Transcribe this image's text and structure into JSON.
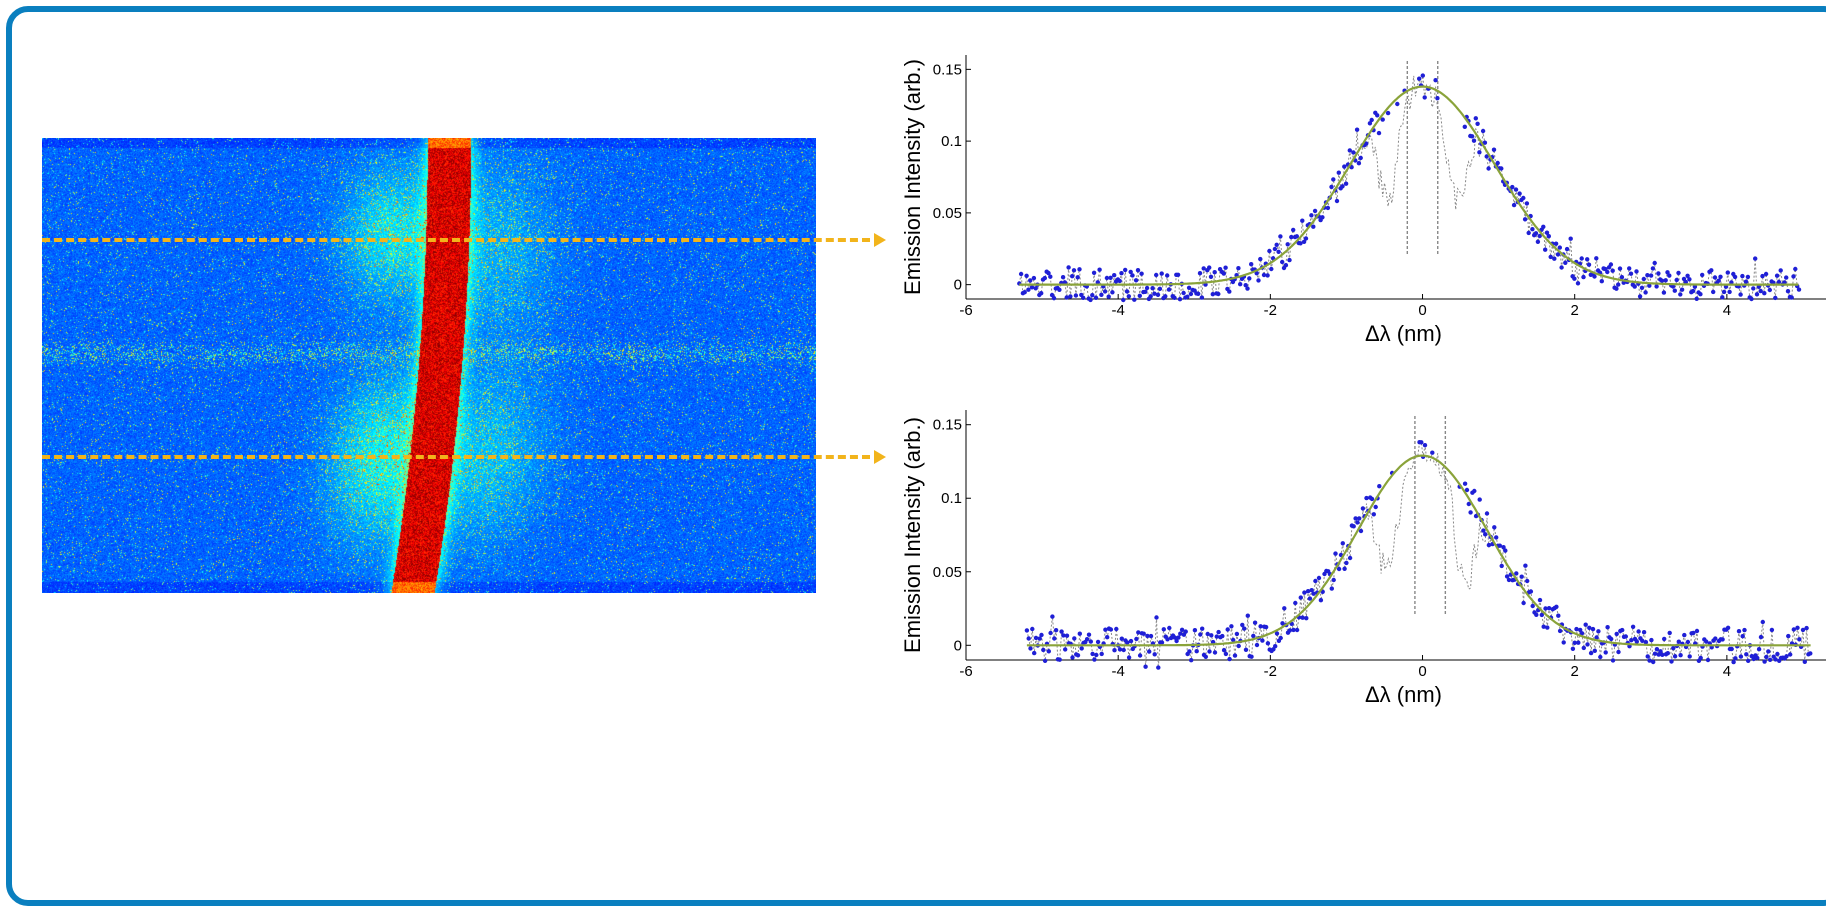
{
  "colors": {
    "frame_border": "#0a7fbf",
    "arrow": "#f2b41b",
    "data_points": "#1f1fd6",
    "fit_line": "#8aa33a",
    "raw_line": "#888888"
  },
  "image_panel": {
    "description_icon": "false-color-emission-image"
  },
  "chart_data": [
    {
      "type": "scatter",
      "title": "",
      "xlabel": "Δλ (nm)",
      "ylabel": "Emission Intensity (arb.)",
      "xlim": [
        -6,
        5.5
      ],
      "ylim": [
        -0.01,
        0.16
      ],
      "xticks": [
        "-6",
        "-4",
        "-2",
        "0",
        "2",
        "4"
      ],
      "xtick_values": [
        -6,
        -4,
        -2,
        0,
        2,
        4
      ],
      "yticks": [
        "0",
        "0.05",
        "0.1",
        "0.15"
      ],
      "ytick_values": [
        0,
        0.05,
        0.1,
        0.15
      ],
      "grid": false,
      "series": [
        {
          "kind": "gaussian-fit",
          "amplitude": 0.138,
          "center": 0,
          "sigma": 0.95,
          "x_range": [
            -5.3,
            4.95
          ]
        },
        {
          "kind": "measured-points",
          "x_range": [
            -5.3,
            4.95
          ],
          "spacing": 0.024,
          "noise": 0.011
        },
        {
          "kind": "raw-dashed",
          "dip_centers": [
            -0.45,
            0.45
          ],
          "spikes_x": [
            -0.2,
            0.2
          ]
        }
      ]
    },
    {
      "type": "scatter",
      "title": "",
      "xlabel": "Δλ (nm)",
      "ylabel": "Emission Intensity (arb.)",
      "xlim": [
        -6,
        5.5
      ],
      "ylim": [
        -0.01,
        0.16
      ],
      "xticks": [
        "-6",
        "-4",
        "-2",
        "0",
        "2",
        "4"
      ],
      "xtick_values": [
        -6,
        -4,
        -2,
        0,
        2,
        4
      ],
      "yticks": [
        "0",
        "0.05",
        "0.1",
        "0.15"
      ],
      "ytick_values": [
        0,
        0.05,
        0.1,
        0.15
      ],
      "grid": false,
      "series": [
        {
          "kind": "gaussian-fit",
          "amplitude": 0.129,
          "center": 0,
          "sigma": 0.85,
          "x_range": [
            -5.2,
            5.1
          ]
        },
        {
          "kind": "measured-points",
          "x_range": [
            -5.2,
            5.1
          ],
          "spacing": 0.024,
          "noise": 0.012
        },
        {
          "kind": "raw-dashed",
          "dip_centers": [
            -0.45,
            0.55
          ],
          "spikes_x": [
            -0.1,
            0.3
          ]
        }
      ]
    }
  ]
}
